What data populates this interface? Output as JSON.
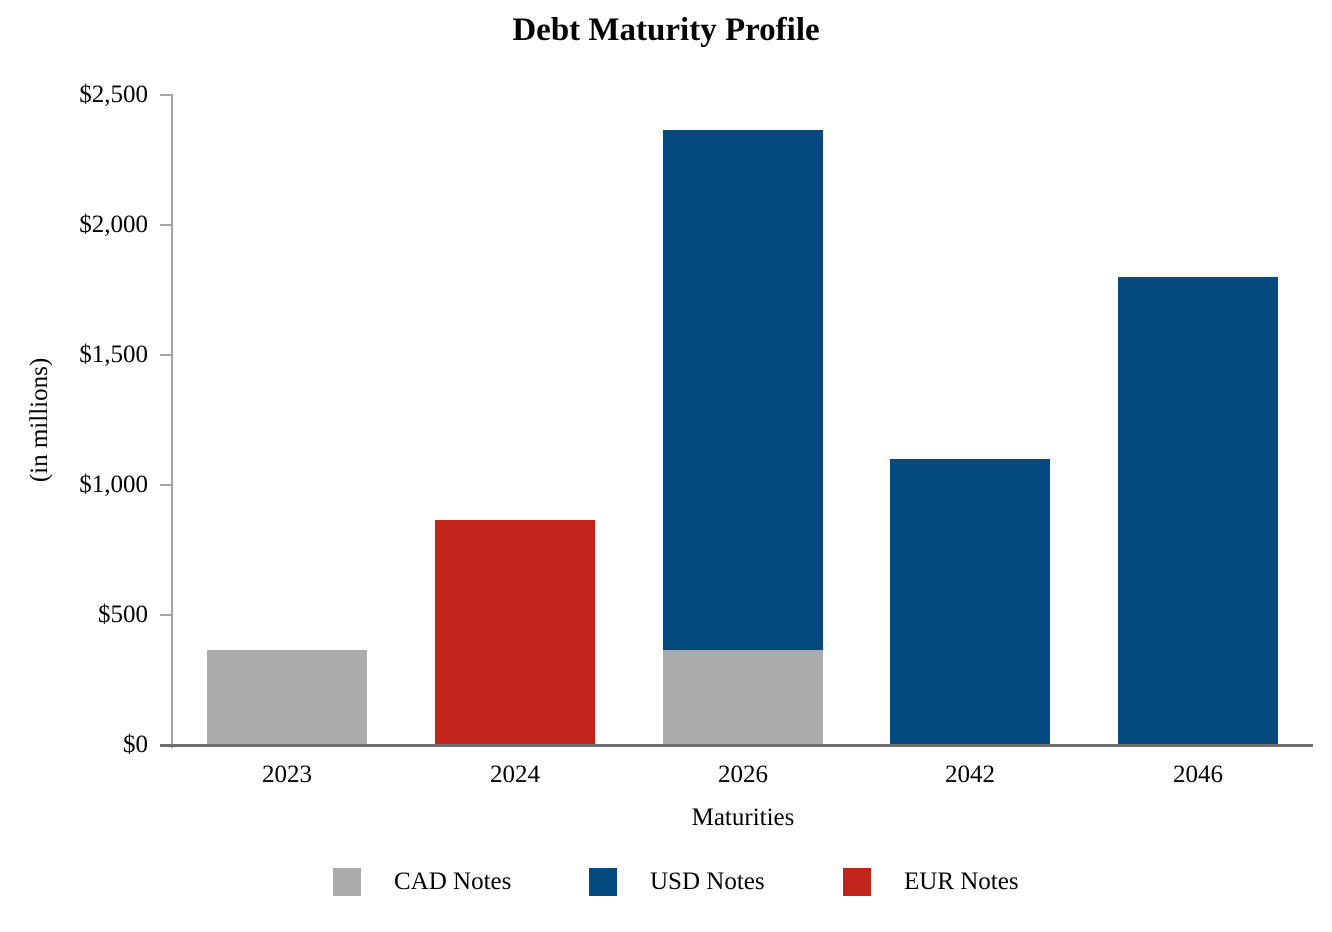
{
  "chart_data": {
    "type": "bar",
    "stacked": true,
    "title": "Debt Maturity Profile",
    "xlabel": "Maturities",
    "ylabel": "(in millions)",
    "categories": [
      "2023",
      "2024",
      "2026",
      "2042",
      "2046"
    ],
    "series": [
      {
        "name": "CAD Notes",
        "color": "#ABABAB",
        "values": [
          365,
          0,
          365,
          0,
          0
        ]
      },
      {
        "name": "USD Notes",
        "color": "#054A7E",
        "values": [
          0,
          0,
          2000,
          1100,
          1800
        ]
      },
      {
        "name": "EUR Notes",
        "color": "#C2231B",
        "values": [
          0,
          865,
          0,
          0,
          0
        ]
      }
    ],
    "ylim": [
      0,
      2500
    ],
    "yticks": [
      {
        "value": 0,
        "label": "$0"
      },
      {
        "value": 500,
        "label": "$500"
      },
      {
        "value": 1000,
        "label": "$1,000"
      },
      {
        "value": 1500,
        "label": "$1,500"
      },
      {
        "value": 2000,
        "label": "$2,000"
      },
      {
        "value": 2500,
        "label": "$2,500"
      }
    ],
    "legend": [
      "CAD Notes",
      "USD Notes",
      "EUR Notes"
    ],
    "legend_position": "bottom",
    "grid": false,
    "background": "#FFFFFF",
    "axis_colors": {
      "y_axis": "#A6A6A6",
      "x_axis": "#6E6E6E",
      "text": "#000000"
    }
  }
}
